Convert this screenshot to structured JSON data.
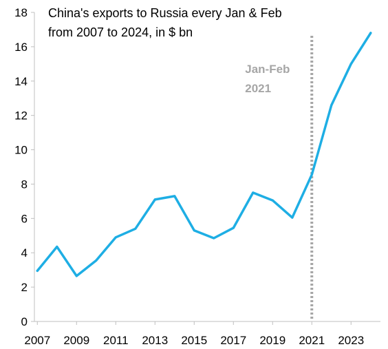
{
  "chart_data": {
    "type": "line",
    "title_lines": [
      "China's exports to Russia every Jan & Feb",
      "from 2007 to 2024, in $ bn"
    ],
    "xlabel": "",
    "ylabel": "",
    "x": [
      2007,
      2008,
      2009,
      2010,
      2011,
      2012,
      2013,
      2014,
      2015,
      2016,
      2017,
      2018,
      2019,
      2020,
      2021,
      2022,
      2023,
      2024
    ],
    "series": [
      {
        "values": [
          2.95,
          4.35,
          2.65,
          3.55,
          4.9,
          5.4,
          7.1,
          7.3,
          5.3,
          4.85,
          5.45,
          7.5,
          7.05,
          6.05,
          8.55,
          12.6,
          15.0,
          16.8
        ],
        "color": "#1eaee4"
      }
    ],
    "ylim": [
      0,
      18
    ],
    "xlim": [
      2006.85,
      2024.5
    ],
    "y_ticks": [
      0,
      2,
      4,
      6,
      8,
      10,
      12,
      14,
      16,
      18
    ],
    "x_ticks": [
      2007,
      2009,
      2011,
      2013,
      2015,
      2017,
      2019,
      2021,
      2023
    ],
    "grid": false,
    "legend": "none",
    "annotations": [
      {
        "type": "vline",
        "x": 2021,
        "color": "#a6a6a6",
        "label_lines": [
          "Jan-Feb",
          "2021"
        ]
      }
    ]
  }
}
